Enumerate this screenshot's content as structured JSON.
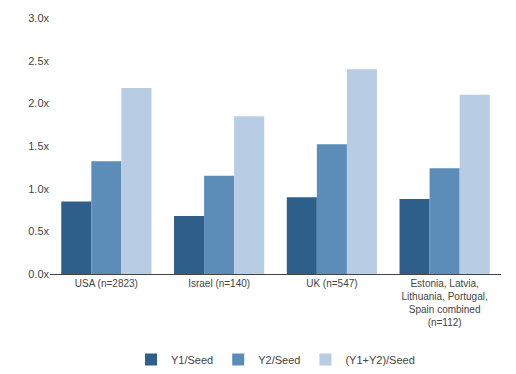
{
  "chart_data": {
    "type": "bar",
    "categories": [
      "USA (n=2823)",
      "Israel (n=140)",
      "UK (n=547)",
      "Estonia, Latvia,\nLithuania, Portugal,\nSpain combined\n(n=112)"
    ],
    "series": [
      {
        "name": "Y1/Seed",
        "color": "#2e5f8a",
        "values": [
          0.85,
          0.68,
          0.9,
          0.88
        ]
      },
      {
        "name": "Y2/Seed",
        "color": "#5b8db8",
        "values": [
          1.32,
          1.15,
          1.52,
          1.24
        ]
      },
      {
        "name": "(Y1+Y2)/Seed",
        "color": "#b8cce4",
        "values": [
          2.18,
          1.85,
          2.4,
          2.1
        ]
      }
    ],
    "ylim": [
      0.0,
      3.0
    ],
    "yticks": [
      {
        "value": 0.0,
        "label": "0.0x"
      },
      {
        "value": 0.5,
        "label": "0.5x"
      },
      {
        "value": 1.0,
        "label": "1.0x"
      },
      {
        "value": 1.5,
        "label": "1.5x"
      },
      {
        "value": 2.0,
        "label": "2.0x"
      },
      {
        "value": 2.5,
        "label": "2.5x"
      },
      {
        "value": 3.0,
        "label": "3.0x"
      }
    ],
    "grid": false,
    "legend": "bottom"
  }
}
